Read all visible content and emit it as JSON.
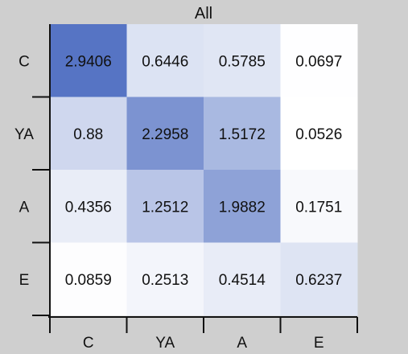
{
  "chart_data": {
    "type": "heatmap",
    "title": "All",
    "row_labels": [
      "C",
      "YA",
      "A",
      "E"
    ],
    "col_labels": [
      "C",
      "YA",
      "A",
      "E"
    ],
    "values": [
      [
        2.9406,
        0.6446,
        0.5785,
        0.0697
      ],
      [
        0.88,
        2.2958,
        1.5172,
        0.0526
      ],
      [
        0.4356,
        1.2512,
        1.9882,
        0.1751
      ],
      [
        0.0859,
        0.2513,
        0.4514,
        0.6237
      ]
    ],
    "value_labels": [
      [
        "2.9406",
        "0.6446",
        "0.5785",
        "0.0697"
      ],
      [
        "0.88",
        "2.2958",
        "1.5172",
        "0.0526"
      ],
      [
        "0.4356",
        "1.2512",
        "1.9882",
        "0.1751"
      ],
      [
        "0.0859",
        "0.2513",
        "0.4514",
        "0.6237"
      ]
    ],
    "color_scale": {
      "low": "#ffffff",
      "high": "#5674c4"
    },
    "background": "#cfcfcf"
  }
}
